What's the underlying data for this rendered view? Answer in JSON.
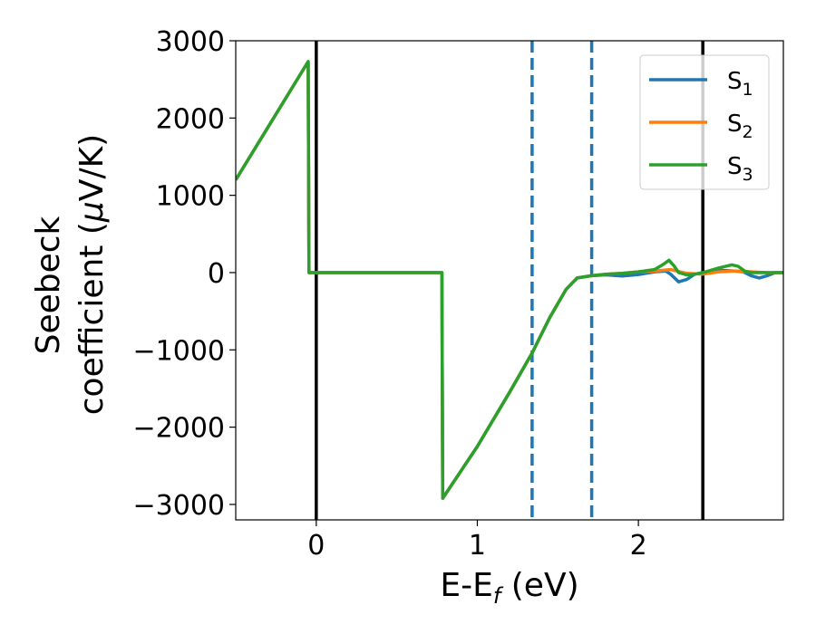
{
  "chart_data": {
    "type": "line",
    "xlabel": "E-E",
    "xlabel_sub": "f",
    "xlabel_unit": " (eV)",
    "ylabel_line1": "Seebeck",
    "ylabel_line2": "coefficient  (",
    "ylabel_mu": "μ",
    "ylabel_unit": "V/K)",
    "xlim": [
      -0.5,
      2.9
    ],
    "ylim": [
      -3200,
      3000
    ],
    "x_ticks": [
      0,
      1,
      2
    ],
    "x_tick_labels": [
      "0",
      "1",
      "2"
    ],
    "y_ticks": [
      3000,
      2000,
      1000,
      0,
      -1000,
      -2000,
      -3000
    ],
    "y_tick_labels": [
      "3000",
      "2000",
      "1000",
      "0",
      "−1000",
      "−2000",
      "−3000"
    ],
    "grid": false,
    "legend_position": "top-right",
    "vlines_solid": [
      0,
      2.4
    ],
    "vlines_dashed": [
      1.34,
      1.71
    ],
    "series": [
      {
        "name": "S",
        "sub": "1",
        "color": "#1f77b4",
        "points": [
          [
            -0.5,
            1200
          ],
          [
            -0.05,
            2730
          ],
          [
            -0.045,
            0
          ],
          [
            0.78,
            0
          ],
          [
            0.785,
            -2920
          ],
          [
            1.0,
            -2250
          ],
          [
            1.2,
            -1550
          ],
          [
            1.34,
            -1040
          ],
          [
            1.45,
            -580
          ],
          [
            1.55,
            -220
          ],
          [
            1.62,
            -70
          ],
          [
            1.71,
            -40
          ],
          [
            1.8,
            -30
          ],
          [
            1.9,
            -45
          ],
          [
            2.0,
            -25
          ],
          [
            2.1,
            10
          ],
          [
            2.17,
            20
          ],
          [
            2.2,
            -20
          ],
          [
            2.25,
            -120
          ],
          [
            2.3,
            -90
          ],
          [
            2.35,
            -20
          ],
          [
            2.4,
            0
          ],
          [
            2.5,
            30
          ],
          [
            2.6,
            20
          ],
          [
            2.65,
            10
          ],
          [
            2.7,
            -40
          ],
          [
            2.75,
            -70
          ],
          [
            2.8,
            -40
          ],
          [
            2.85,
            0
          ],
          [
            2.9,
            0
          ]
        ]
      },
      {
        "name": "S",
        "sub": "2",
        "color": "#ff7f0e",
        "points": [
          [
            -0.5,
            1200
          ],
          [
            -0.05,
            2730
          ],
          [
            -0.045,
            0
          ],
          [
            0.78,
            0
          ],
          [
            0.785,
            -2920
          ],
          [
            1.0,
            -2250
          ],
          [
            1.2,
            -1550
          ],
          [
            1.34,
            -1040
          ],
          [
            1.45,
            -580
          ],
          [
            1.55,
            -220
          ],
          [
            1.62,
            -70
          ],
          [
            1.71,
            -40
          ],
          [
            1.8,
            -20
          ],
          [
            1.9,
            -10
          ],
          [
            2.0,
            10
          ],
          [
            2.1,
            20
          ],
          [
            2.2,
            40
          ],
          [
            2.3,
            -10
          ],
          [
            2.4,
            -20
          ],
          [
            2.5,
            10
          ],
          [
            2.6,
            20
          ],
          [
            2.7,
            10
          ],
          [
            2.8,
            0
          ],
          [
            2.9,
            0
          ]
        ]
      },
      {
        "name": "S",
        "sub": "3",
        "color": "#2ca02c",
        "points": [
          [
            -0.5,
            1200
          ],
          [
            -0.05,
            2730
          ],
          [
            -0.045,
            0
          ],
          [
            0.78,
            0
          ],
          [
            0.785,
            -2920
          ],
          [
            1.0,
            -2250
          ],
          [
            1.2,
            -1550
          ],
          [
            1.34,
            -1040
          ],
          [
            1.45,
            -580
          ],
          [
            1.55,
            -220
          ],
          [
            1.62,
            -70
          ],
          [
            1.71,
            -40
          ],
          [
            1.8,
            -20
          ],
          [
            1.9,
            -10
          ],
          [
            2.0,
            10
          ],
          [
            2.1,
            40
          ],
          [
            2.15,
            100
          ],
          [
            2.19,
            160
          ],
          [
            2.22,
            90
          ],
          [
            2.25,
            0
          ],
          [
            2.3,
            -30
          ],
          [
            2.35,
            -20
          ],
          [
            2.4,
            0
          ],
          [
            2.5,
            60
          ],
          [
            2.58,
            100
          ],
          [
            2.62,
            80
          ],
          [
            2.66,
            20
          ],
          [
            2.7,
            0
          ],
          [
            2.8,
            0
          ],
          [
            2.9,
            0
          ]
        ]
      }
    ]
  }
}
